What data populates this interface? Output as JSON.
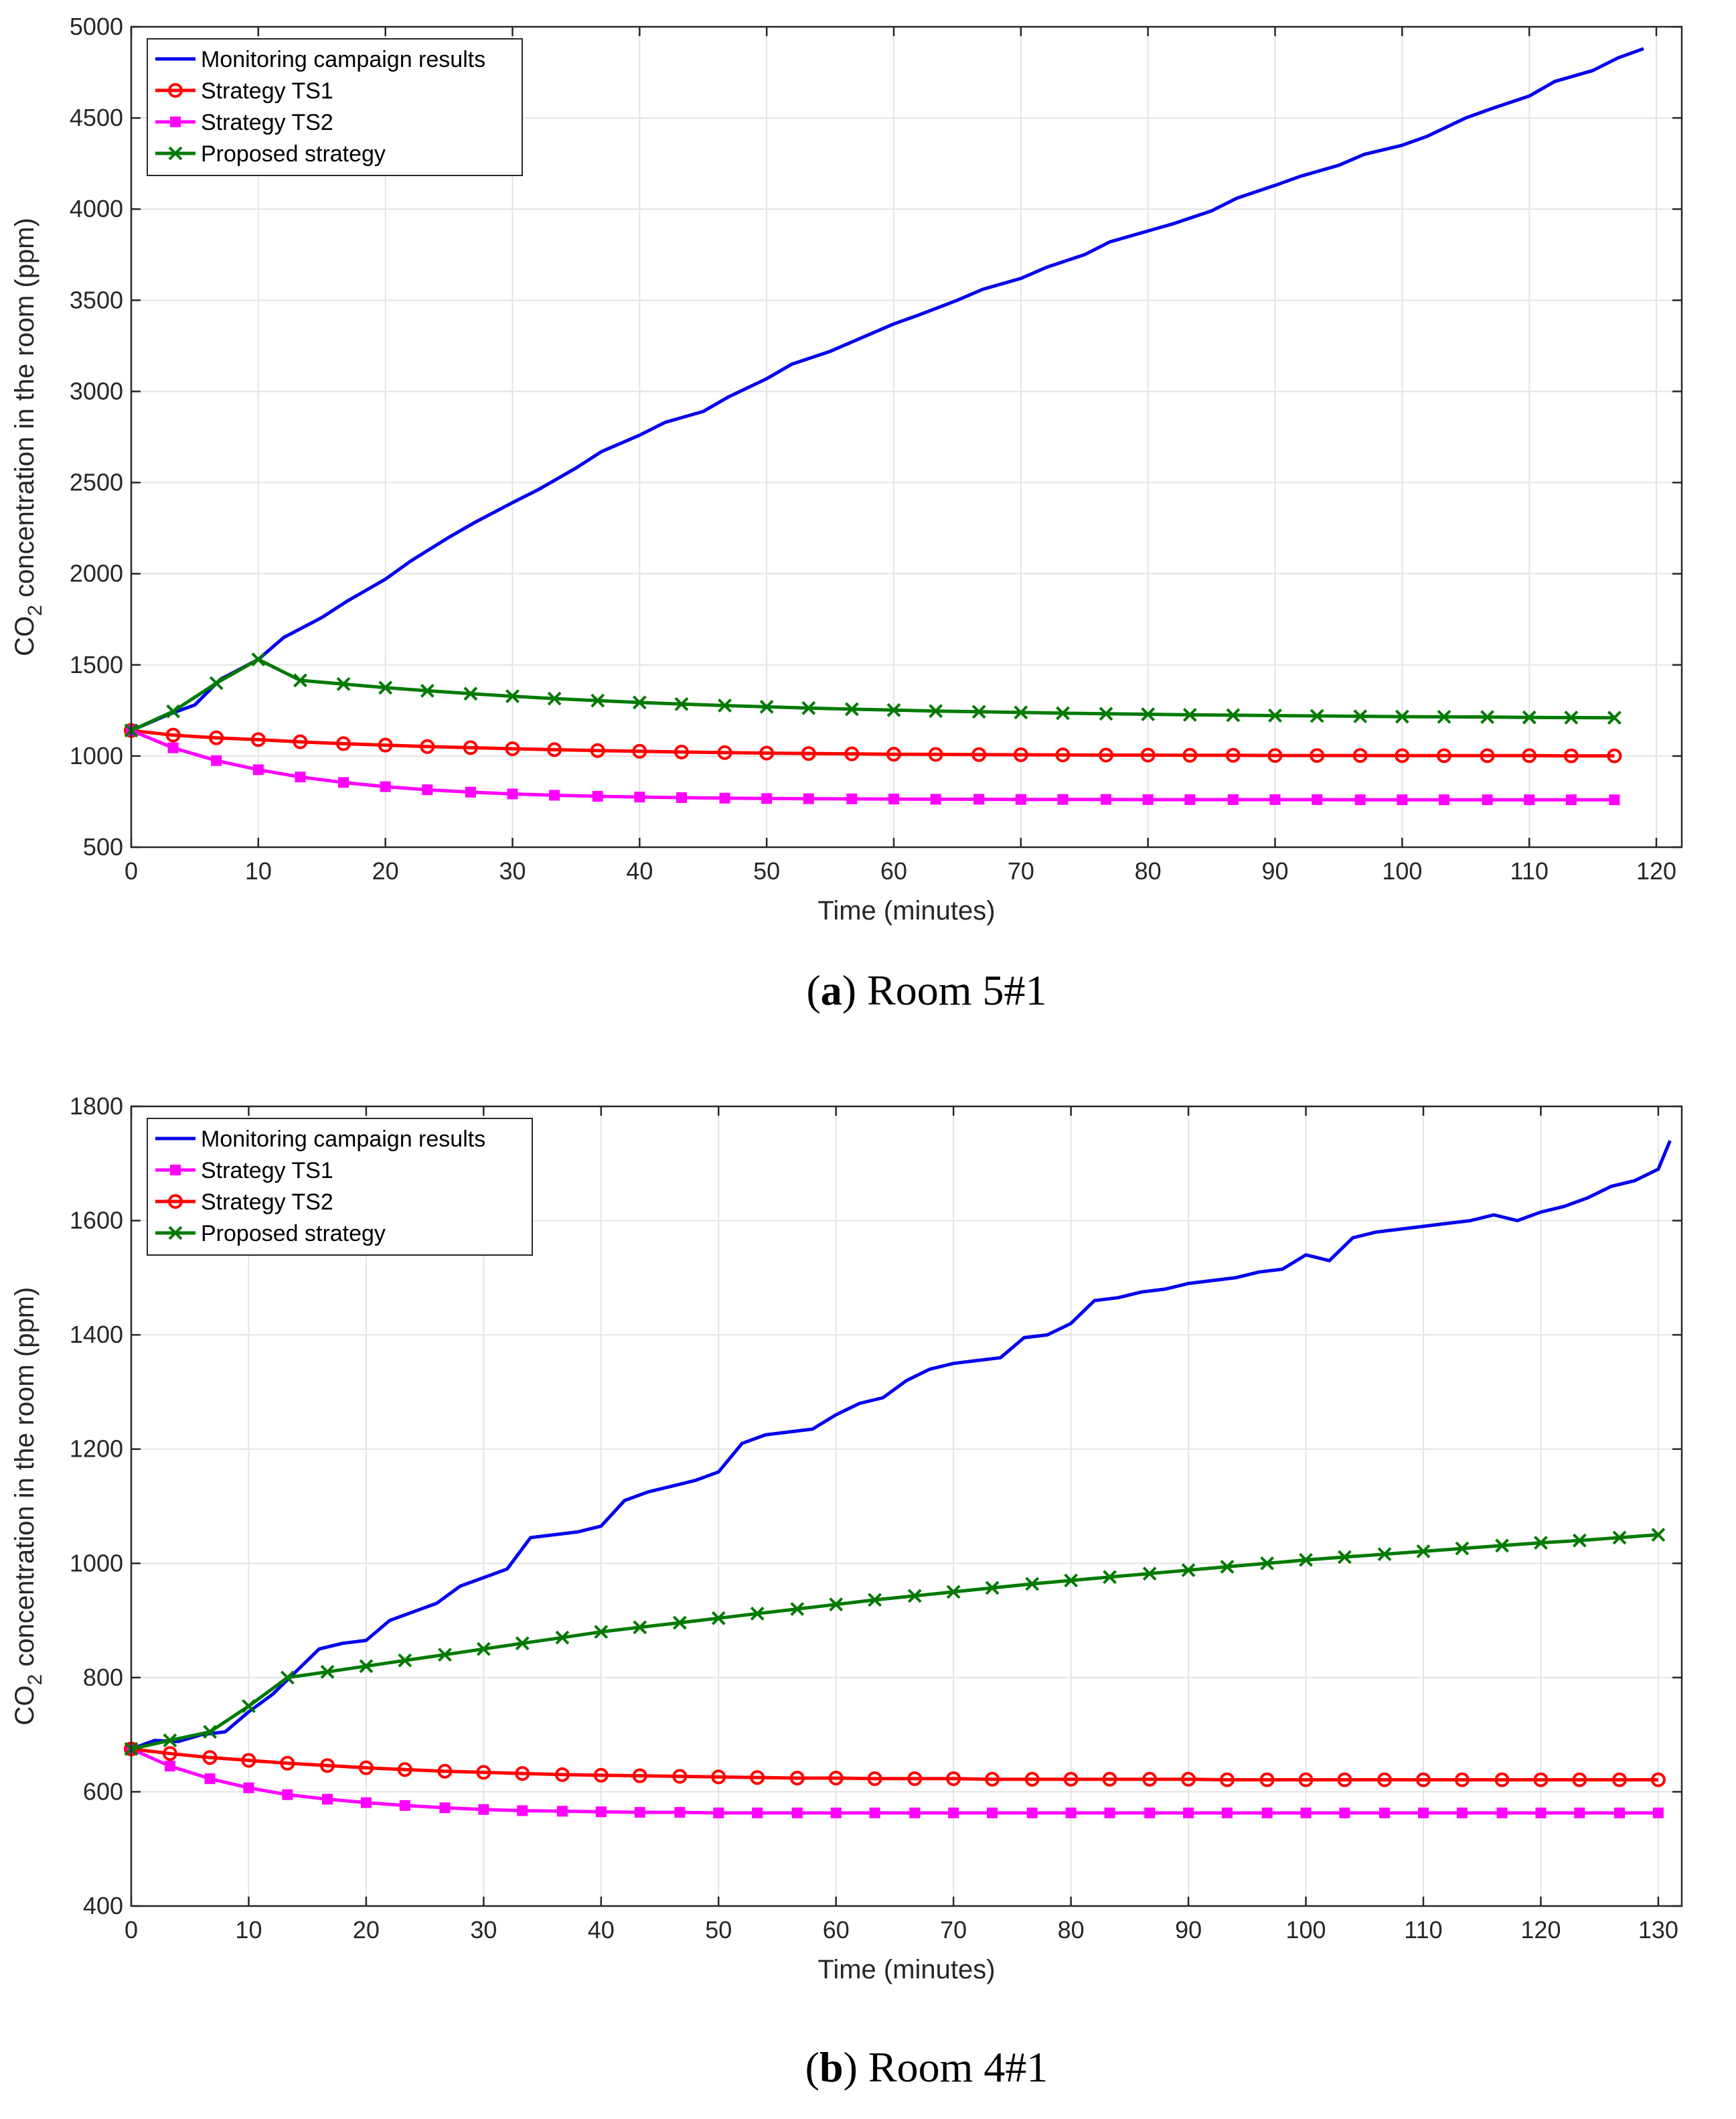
{
  "chart_data": [
    {
      "type": "line",
      "caption_letter": "a",
      "caption_text": "Room 5#1",
      "xlabel": "Time (minutes)",
      "ylabel": "concentration in the room (ppm)",
      "ylabel_prefix": "CO",
      "ylabel_subscript": "2",
      "xlim": [
        0,
        122
      ],
      "ylim": [
        500,
        5000
      ],
      "xticks": [
        0,
        10,
        20,
        30,
        40,
        50,
        60,
        70,
        80,
        90,
        100,
        110,
        120
      ],
      "yticks": [
        500,
        1000,
        1500,
        2000,
        2500,
        3000,
        3500,
        4000,
        4500,
        5000
      ],
      "grid": true,
      "legend_position": "top-left",
      "series": [
        {
          "name": "Monitoring campaign results",
          "color": "#0000ee",
          "marker": "none",
          "x": [
            0,
            3,
            5,
            7,
            10,
            12,
            15,
            17,
            20,
            22,
            25,
            27,
            30,
            32,
            35,
            37,
            40,
            42,
            45,
            47,
            50,
            52,
            55,
            57,
            60,
            62,
            65,
            67,
            70,
            72,
            75,
            77,
            80,
            82,
            85,
            87,
            90,
            92,
            95,
            97,
            100,
            102,
            105,
            107,
            110,
            112,
            115,
            117,
            119
          ],
          "values": [
            1140,
            1230,
            1280,
            1420,
            1530,
            1650,
            1760,
            1850,
            1970,
            2070,
            2200,
            2280,
            2390,
            2460,
            2580,
            2670,
            2760,
            2830,
            2890,
            2970,
            3070,
            3150,
            3220,
            3280,
            3370,
            3420,
            3500,
            3560,
            3620,
            3680,
            3750,
            3820,
            3880,
            3920,
            3990,
            4060,
            4130,
            4180,
            4240,
            4300,
            4350,
            4400,
            4500,
            4550,
            4620,
            4700,
            4760,
            4830,
            4880
          ]
        },
        {
          "name": "Strategy TS1",
          "color": "#ff0000",
          "marker": "circle",
          "x": [
            0,
            3.3,
            6.7,
            10,
            13.3,
            16.7,
            20,
            23.3,
            26.7,
            30,
            33.3,
            36.7,
            40,
            43.3,
            46.7,
            50,
            53.3,
            56.7,
            60,
            63.3,
            66.7,
            70,
            73.3,
            76.7,
            80,
            83.3,
            86.7,
            90,
            93.3,
            96.7,
            100,
            103.3,
            106.7,
            110,
            113.3,
            116.7
          ],
          "values": [
            1140,
            1115,
            1100,
            1090,
            1078,
            1068,
            1060,
            1052,
            1046,
            1040,
            1035,
            1030,
            1026,
            1022,
            1019,
            1016,
            1014,
            1012,
            1010,
            1009,
            1008,
            1007,
            1006,
            1005,
            1005,
            1004,
            1004,
            1003,
            1003,
            1003,
            1002,
            1002,
            1002,
            1002,
            1001,
            1001
          ]
        },
        {
          "name": "Strategy TS2",
          "color": "#ff00ff",
          "marker": "square",
          "x": [
            0,
            3.3,
            6.7,
            10,
            13.3,
            16.7,
            20,
            23.3,
            26.7,
            30,
            33.3,
            36.7,
            40,
            43.3,
            46.7,
            50,
            53.3,
            56.7,
            60,
            63.3,
            66.7,
            70,
            73.3,
            76.7,
            80,
            83.3,
            86.7,
            90,
            93.3,
            96.7,
            100,
            103.3,
            106.7,
            110,
            113.3,
            116.7
          ],
          "values": [
            1140,
            1045,
            975,
            925,
            885,
            855,
            832,
            815,
            802,
            792,
            785,
            779,
            775,
            772,
            769,
            767,
            766,
            765,
            764,
            763,
            763,
            762,
            762,
            762,
            761,
            761,
            761,
            761,
            761,
            760,
            760,
            760,
            760,
            760,
            760,
            760
          ]
        },
        {
          "name": "Proposed strategy",
          "color": "#007a00",
          "marker": "cross",
          "x": [
            0,
            3.3,
            6.7,
            10,
            13.3,
            16.7,
            20,
            23.3,
            26.7,
            30,
            33.3,
            36.7,
            40,
            43.3,
            46.7,
            50,
            53.3,
            56.7,
            60,
            63.3,
            66.7,
            70,
            73.3,
            76.7,
            80,
            83.3,
            86.7,
            90,
            93.3,
            96.7,
            100,
            103.3,
            106.7,
            110,
            113.3,
            116.7
          ],
          "values": [
            1140,
            1245,
            1400,
            1530,
            1415,
            1395,
            1375,
            1358,
            1342,
            1328,
            1315,
            1304,
            1294,
            1285,
            1277,
            1270,
            1263,
            1257,
            1252,
            1247,
            1243,
            1239,
            1235,
            1232,
            1229,
            1226,
            1224,
            1222,
            1220,
            1218,
            1216,
            1215,
            1214,
            1212,
            1211,
            1210
          ]
        }
      ]
    },
    {
      "type": "line",
      "caption_letter": "b",
      "caption_text": "Room 4#1",
      "xlabel": "Time (minutes)",
      "ylabel": "concentration in the room (ppm)",
      "ylabel_prefix": "CO",
      "ylabel_subscript": "2",
      "xlim": [
        0,
        132
      ],
      "ylim": [
        400,
        1800
      ],
      "xticks": [
        0,
        10,
        20,
        30,
        40,
        50,
        60,
        70,
        80,
        90,
        100,
        110,
        120,
        130
      ],
      "yticks": [
        400,
        600,
        800,
        1000,
        1200,
        1400,
        1600,
        1800
      ],
      "grid": true,
      "legend_position": "top-left",
      "series": [
        {
          "name": "Monitoring campaign results",
          "color": "#0000ee",
          "marker": "none",
          "x": [
            0,
            2,
            4,
            6,
            8,
            10,
            12,
            14,
            16,
            18,
            20,
            22,
            24,
            26,
            28,
            30,
            32,
            34,
            36,
            38,
            40,
            42,
            44,
            46,
            48,
            50,
            52,
            54,
            56,
            58,
            60,
            62,
            64,
            66,
            68,
            70,
            72,
            74,
            76,
            78,
            80,
            82,
            84,
            86,
            88,
            90,
            92,
            94,
            96,
            98,
            100,
            102,
            104,
            106,
            108,
            110,
            112,
            114,
            116,
            118,
            120,
            122,
            124,
            126,
            128,
            130,
            131
          ],
          "values": [
            675,
            690,
            688,
            700,
            705,
            740,
            770,
            810,
            850,
            860,
            865,
            900,
            915,
            930,
            960,
            975,
            990,
            1045,
            1050,
            1055,
            1065,
            1110,
            1125,
            1135,
            1145,
            1160,
            1210,
            1225,
            1230,
            1235,
            1260,
            1280,
            1290,
            1320,
            1340,
            1350,
            1355,
            1360,
            1395,
            1400,
            1420,
            1460,
            1465,
            1475,
            1480,
            1490,
            1495,
            1500,
            1510,
            1515,
            1540,
            1530,
            1570,
            1580,
            1585,
            1590,
            1595,
            1600,
            1610,
            1600,
            1615,
            1625,
            1640,
            1660,
            1670,
            1690,
            1740
          ]
        },
        {
          "name": "Strategy TS1",
          "color": "#ff00ff",
          "marker": "square",
          "x": [
            0,
            3.3,
            6.7,
            10,
            13.3,
            16.7,
            20,
            23.3,
            26.7,
            30,
            33.3,
            36.7,
            40,
            43.3,
            46.7,
            50,
            53.3,
            56.7,
            60,
            63.3,
            66.7,
            70,
            73.3,
            76.7,
            80,
            83.3,
            86.7,
            90,
            93.3,
            96.7,
            100,
            103.3,
            106.7,
            110,
            113.3,
            116.7,
            120,
            123.3,
            126.7,
            130
          ],
          "values": [
            675,
            645,
            623,
            607,
            595,
            587,
            581,
            576,
            572,
            569,
            567,
            566,
            565,
            564,
            564,
            563,
            563,
            563,
            563,
            563,
            563,
            563,
            563,
            563,
            563,
            563,
            563,
            563,
            563,
            563,
            563,
            563,
            563,
            563,
            563,
            563,
            563,
            563,
            563,
            563
          ]
        },
        {
          "name": "Strategy TS2",
          "color": "#ff0000",
          "marker": "circle",
          "x": [
            0,
            3.3,
            6.7,
            10,
            13.3,
            16.7,
            20,
            23.3,
            26.7,
            30,
            33.3,
            36.7,
            40,
            43.3,
            46.7,
            50,
            53.3,
            56.7,
            60,
            63.3,
            66.7,
            70,
            73.3,
            76.7,
            80,
            83.3,
            86.7,
            90,
            93.3,
            96.7,
            100,
            103.3,
            106.7,
            110,
            113.3,
            116.7,
            120,
            123.3,
            126.7,
            130
          ],
          "values": [
            675,
            667,
            660,
            655,
            650,
            646,
            642,
            639,
            636,
            634,
            632,
            630,
            629,
            628,
            627,
            626,
            625,
            624,
            624,
            623,
            623,
            623,
            622,
            622,
            622,
            622,
            622,
            622,
            621,
            621,
            621,
            621,
            621,
            621,
            621,
            621,
            621,
            621,
            621,
            621
          ]
        },
        {
          "name": "Proposed strategy",
          "color": "#007a00",
          "marker": "cross",
          "x": [
            0,
            3.3,
            6.7,
            10,
            13.3,
            16.7,
            20,
            23.3,
            26.7,
            30,
            33.3,
            36.7,
            40,
            43.3,
            46.7,
            50,
            53.3,
            56.7,
            60,
            63.3,
            66.7,
            70,
            73.3,
            76.7,
            80,
            83.3,
            86.7,
            90,
            93.3,
            96.7,
            100,
            103.3,
            106.7,
            110,
            113.3,
            116.7,
            120,
            123.3,
            126.7,
            130
          ],
          "values": [
            675,
            690,
            705,
            750,
            800,
            810,
            820,
            830,
            840,
            850,
            860,
            870,
            880,
            888,
            896,
            904,
            912,
            920,
            928,
            936,
            943,
            950,
            957,
            964,
            970,
            976,
            982,
            988,
            994,
            1000,
            1006,
            1011,
            1016,
            1021,
            1026,
            1031,
            1036,
            1040,
            1045,
            1050
          ]
        }
      ]
    }
  ]
}
